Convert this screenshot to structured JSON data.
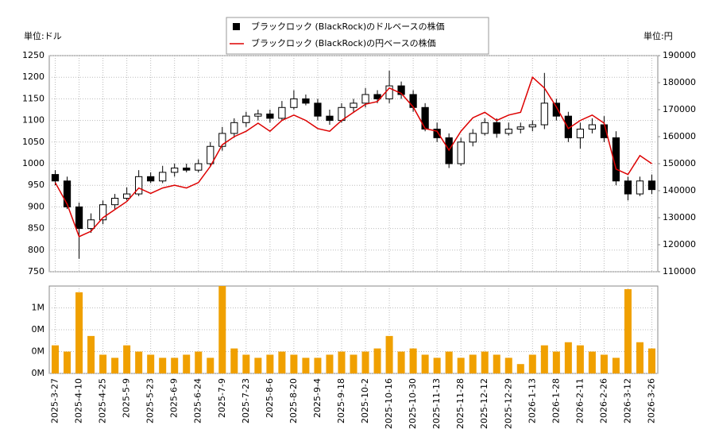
{
  "chart_data": [
    {
      "type": "candlestick",
      "y_unit": "単位:ドル",
      "y2_unit": "単位:円",
      "x": [
        "2025-3-27",
        "2025-4-3",
        "2025-4-10",
        "2025-4-17",
        "2025-4-25",
        "2025-5-2",
        "2025-5-9",
        "2025-5-16",
        "2025-5-23",
        "2025-5-30",
        "2025-6-9",
        "2025-6-16",
        "2025-6-24",
        "2025-7-1",
        "2025-7-9",
        "2025-7-16",
        "2025-7-23",
        "2025-7-30",
        "2025-8-6",
        "2025-8-13",
        "2025-8-20",
        "2025-8-27",
        "2025-9-4",
        "2025-9-11",
        "2025-9-18",
        "2025-9-25",
        "2025-10-2",
        "2025-10-9",
        "2025-10-16",
        "2025-10-23",
        "2025-10-30",
        "2025-11-6",
        "2025-11-13",
        "2025-11-20",
        "2025-11-28",
        "2025-12-5",
        "2025-12-12",
        "2025-12-19",
        "2025-12-29",
        "2026-1-6",
        "2026-1-13",
        "2026-1-20",
        "2026-1-28",
        "2026-2-4",
        "2026-2-11",
        "2026-2-19",
        "2026-2-26",
        "2026-3-5",
        "2026-3-12",
        "2026-3-19",
        "2026-3-26"
      ],
      "xticks": [
        "2025-3-27",
        "2025-4-10",
        "2025-4-25",
        "2025-5-9",
        "2025-5-23",
        "2025-6-9",
        "2025-6-24",
        "2025-7-9",
        "2025-7-23",
        "2025-8-6",
        "2025-8-20",
        "2025-9-4",
        "2025-9-18",
        "2025-10-2",
        "2025-10-16",
        "2025-10-30",
        "2025-11-13",
        "2025-11-28",
        "2025-12-12",
        "2025-12-29",
        "2026-1-13",
        "2026-1-28",
        "2026-2-11",
        "2026-2-26",
        "2026-3-12",
        "2026-3-26"
      ],
      "series": [
        {
          "name": "ブラックロック (BlackRock)のドルベースの株価",
          "color": "#000000",
          "open": [
            975,
            960,
            900,
            850,
            870,
            905,
            920,
            930,
            970,
            960,
            980,
            990,
            985,
            1000,
            1040,
            1070,
            1095,
            1110,
            1115,
            1105,
            1130,
            1150,
            1140,
            1110,
            1100,
            1130,
            1140,
            1160,
            1150,
            1180,
            1160,
            1130,
            1080,
            1060,
            1000,
            1050,
            1070,
            1095,
            1070,
            1080,
            1085,
            1090,
            1140,
            1110,
            1060,
            1080,
            1090,
            1060,
            960,
            930,
            960
          ],
          "high": [
            985,
            970,
            910,
            885,
            915,
            930,
            945,
            985,
            980,
            995,
            1000,
            1000,
            1010,
            1050,
            1085,
            1105,
            1120,
            1125,
            1125,
            1145,
            1170,
            1160,
            1150,
            1125,
            1140,
            1150,
            1175,
            1170,
            1215,
            1190,
            1170,
            1140,
            1095,
            1070,
            1060,
            1080,
            1105,
            1105,
            1095,
            1095,
            1100,
            1210,
            1150,
            1120,
            1095,
            1105,
            1110,
            1075,
            970,
            970,
            975
          ],
          "low": [
            950,
            895,
            780,
            840,
            860,
            895,
            915,
            925,
            955,
            955,
            970,
            980,
            980,
            995,
            1030,
            1060,
            1085,
            1100,
            1095,
            1100,
            1125,
            1135,
            1100,
            1090,
            1095,
            1120,
            1130,
            1140,
            1140,
            1150,
            1120,
            1075,
            1050,
            990,
            995,
            1040,
            1065,
            1060,
            1065,
            1070,
            1075,
            1080,
            1100,
            1050,
            1035,
            1070,
            1050,
            950,
            915,
            925,
            930
          ],
          "close": [
            960,
            900,
            850,
            870,
            905,
            920,
            930,
            970,
            960,
            980,
            990,
            985,
            1000,
            1040,
            1070,
            1095,
            1110,
            1115,
            1105,
            1130,
            1150,
            1140,
            1110,
            1100,
            1130,
            1140,
            1160,
            1150,
            1180,
            1160,
            1130,
            1080,
            1060,
            1000,
            1050,
            1070,
            1095,
            1070,
            1080,
            1085,
            1090,
            1140,
            1110,
            1060,
            1080,
            1090,
            1060,
            960,
            930,
            960,
            940
          ]
        },
        {
          "name": "ブラックロック (BlackRock)の円ベースの株価",
          "color": "#dd0000",
          "axis": "y2",
          "values": [
            143000,
            135000,
            123000,
            125000,
            130000,
            133000,
            136000,
            141000,
            139000,
            141000,
            142000,
            141000,
            143000,
            149000,
            157000,
            160000,
            162000,
            165000,
            162000,
            166000,
            168000,
            166000,
            163000,
            162000,
            166000,
            169000,
            172000,
            173000,
            178000,
            176000,
            171000,
            163000,
            162000,
            155000,
            162000,
            167000,
            169000,
            166000,
            168000,
            169000,
            182000,
            178000,
            171000,
            163000,
            166000,
            168000,
            165000,
            148000,
            146000,
            153000,
            150000
          ]
        }
      ],
      "ylim": [
        750,
        1250
      ],
      "yticks": [
        750,
        800,
        850,
        900,
        950,
        1000,
        1050,
        1100,
        1150,
        1200,
        1250
      ],
      "y2lim": [
        110000,
        190000
      ],
      "y2ticks": [
        110000,
        120000,
        130000,
        140000,
        150000,
        160000,
        170000,
        180000,
        190000
      ],
      "grid": true
    },
    {
      "type": "bar",
      "color": "#f0a000",
      "values": [
        450000,
        350000,
        1300000,
        600000,
        300000,
        250000,
        450000,
        350000,
        300000,
        250000,
        250000,
        300000,
        350000,
        250000,
        1400000,
        400000,
        300000,
        250000,
        300000,
        350000,
        300000,
        250000,
        250000,
        300000,
        350000,
        300000,
        350000,
        400000,
        600000,
        350000,
        400000,
        300000,
        250000,
        350000,
        250000,
        300000,
        350000,
        300000,
        250000,
        150000,
        300000,
        450000,
        350000,
        500000,
        450000,
        350000,
        300000,
        250000,
        1350000,
        500000,
        400000
      ],
      "ylim": [
        0,
        1400000
      ],
      "yticks": [
        {
          "value": 0,
          "label": "0M"
        },
        {
          "value": 350000,
          "label": "0M"
        },
        {
          "value": 700000,
          "label": "0M"
        },
        {
          "value": 1050000,
          "label": "1M"
        }
      ],
      "grid": true
    }
  ]
}
